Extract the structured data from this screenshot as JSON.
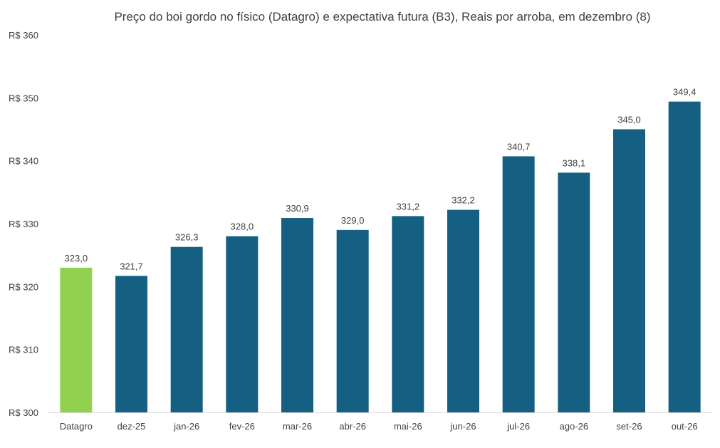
{
  "chart_data": {
    "type": "bar",
    "title": "Preço do boi gordo no físico (Datagro)  e expectativa futura (B3), Reais por arroba, em dezembro (8)",
    "xlabel": "",
    "ylabel": "",
    "categories": [
      "Datagro",
      "dez-25",
      "jan-26",
      "fev-26",
      "mar-26",
      "abr-26",
      "mai-26",
      "jun-26",
      "jul-26",
      "ago-26",
      "set-26",
      "out-26"
    ],
    "values": [
      323.0,
      321.7,
      326.3,
      328.0,
      330.9,
      329.0,
      331.2,
      332.2,
      340.7,
      338.1,
      345.0,
      349.4
    ],
    "value_labels": [
      "323,0",
      "321,7",
      "326,3",
      "328,0",
      "330,9",
      "329,0",
      "331,2",
      "332,2",
      "340,7",
      "338,1",
      "345,0",
      "349,4"
    ],
    "y_ticks": [
      300,
      310,
      320,
      330,
      340,
      350,
      360
    ],
    "y_tick_labels": [
      "R$ 300",
      "R$ 310",
      "R$ 320",
      "R$ 330",
      "R$ 340",
      "R$ 350",
      "R$ 360"
    ],
    "ylim": [
      300,
      360
    ],
    "grid": false,
    "legend": "none",
    "colors": {
      "highlight": "#92d050",
      "bars": "#156082",
      "axis": "#d9d9d9",
      "text": "#404040"
    },
    "highlight_index": 0
  }
}
